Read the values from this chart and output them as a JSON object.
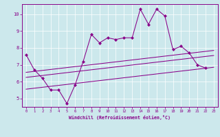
{
  "xlabel": "Windchill (Refroidissement éolien,°C)",
  "background_color": "#cce8ec",
  "line_color": "#880088",
  "grid_color": "#ffffff",
  "xlim": [
    -0.5,
    23.5
  ],
  "ylim": [
    4.5,
    10.6
  ],
  "yticks": [
    5,
    6,
    7,
    8,
    9,
    10
  ],
  "xticks": [
    0,
    1,
    2,
    3,
    4,
    5,
    6,
    7,
    8,
    9,
    10,
    11,
    12,
    13,
    14,
    15,
    16,
    17,
    18,
    19,
    20,
    21,
    22,
    23
  ],
  "main_y": [
    7.6,
    6.7,
    6.2,
    5.5,
    5.5,
    4.7,
    5.8,
    7.2,
    8.8,
    8.3,
    8.6,
    8.5,
    8.6,
    8.6,
    10.3,
    9.4,
    10.3,
    9.9,
    7.9,
    8.1,
    7.7,
    7.0,
    6.8,
    null
  ],
  "reg_line1": [
    [
      0,
      6.55
    ],
    [
      23,
      7.85
    ]
  ],
  "reg_line2": [
    [
      0,
      6.25
    ],
    [
      23,
      7.55
    ]
  ],
  "reg_line3": [
    [
      0,
      5.55
    ],
    [
      23,
      6.85
    ]
  ]
}
